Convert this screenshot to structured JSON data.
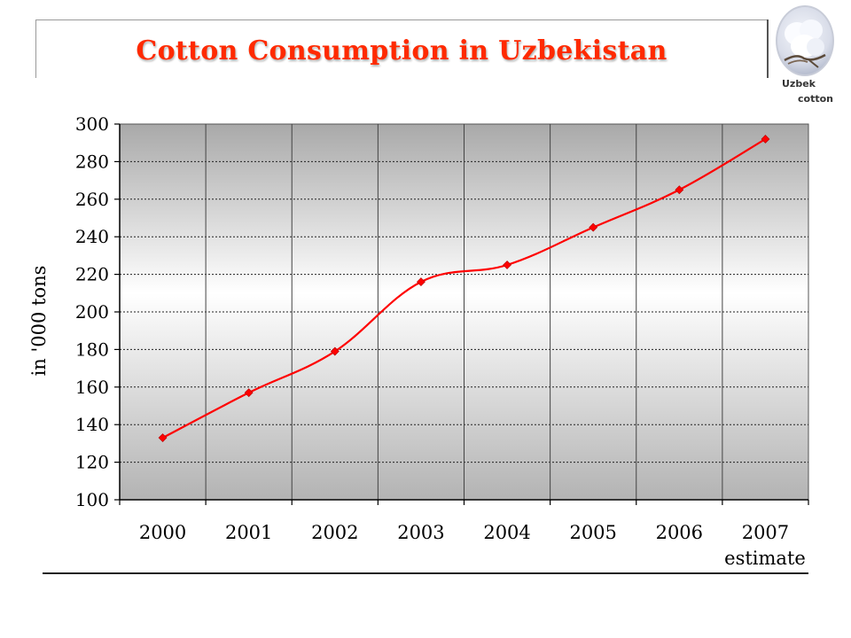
{
  "header": {
    "title": "Cotton Consumption in Uzbekistan"
  },
  "logo": {
    "line1": "Uzbek",
    "line2": "cotton"
  },
  "chart_data": {
    "type": "line",
    "title": "Cotton Consumption in Uzbekistan",
    "xlabel": "",
    "ylabel": "in '000 tons",
    "categories": [
      "2000",
      "2001",
      "2002",
      "2003",
      "2004",
      "2005",
      "2006",
      "2007"
    ],
    "category_note": {
      "category": "2007",
      "text": "estimate"
    },
    "series": [
      {
        "values": [
          133,
          157,
          179,
          216,
          225,
          245,
          265,
          292
        ],
        "color": "#ff0000"
      }
    ],
    "ylim": [
      100,
      300
    ],
    "yticks": [
      100,
      120,
      140,
      160,
      180,
      200,
      220,
      240,
      260,
      280,
      300
    ],
    "grid": true,
    "legend": "none",
    "smooth": true
  }
}
